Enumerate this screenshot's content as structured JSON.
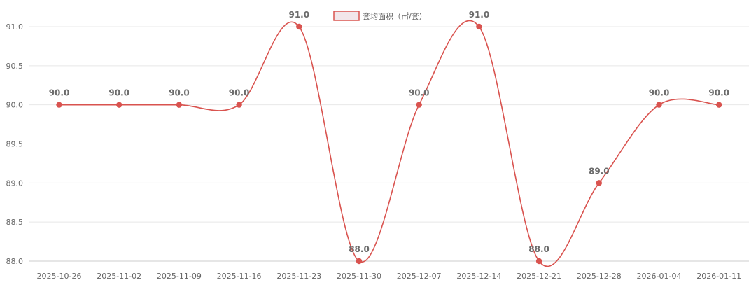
{
  "chart_data": {
    "type": "line",
    "categories": [
      "2025-10-26",
      "2025-11-02",
      "2025-11-09",
      "2025-11-16",
      "2025-11-23",
      "2025-11-30",
      "2025-12-07",
      "2025-12-14",
      "2025-12-21",
      "2025-12-28",
      "2026-01-04",
      "2026-01-11"
    ],
    "series": [
      {
        "name": "套均面积（㎡/套）",
        "values": [
          90.0,
          90.0,
          90.0,
          90.0,
          91.0,
          88.0,
          90.0,
          91.0,
          88.0,
          89.0,
          90.0,
          90.0
        ]
      }
    ],
    "ylim": [
      88.0,
      91.0
    ],
    "yticks": [
      "91.0",
      "90.5",
      "90.0",
      "89.5",
      "89.0",
      "88.5",
      "88.0"
    ],
    "data_labels": [
      "90.0",
      "90.0",
      "90.0",
      "90.0",
      "91.0",
      "88.0",
      "90.0",
      "91.0",
      "88.0",
      "89.0",
      "90.0",
      "90.0"
    ],
    "grid": "horizontal",
    "legend_position": "top-center",
    "smooth": true
  },
  "colors": {
    "line": "#d9534f",
    "point": "#d9534f",
    "legend_fill": "#f2e6ea",
    "grid": "#e8e8e8",
    "axis": "#cccccc"
  }
}
